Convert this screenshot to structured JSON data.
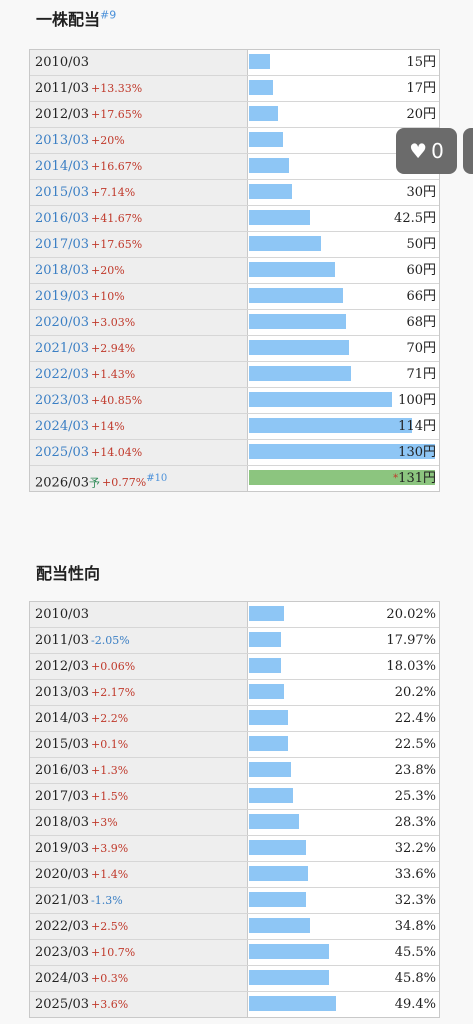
{
  "dividend": {
    "title": "一株配当",
    "note": "#9",
    "rows": [
      {
        "year": "2010/03",
        "chg": "",
        "dir": "",
        "blue": false,
        "value": "15円",
        "ratio": 0.115
      },
      {
        "year": "2011/03",
        "chg": "+13.33%",
        "dir": "up",
        "blue": false,
        "value": "17円",
        "ratio": 0.131
      },
      {
        "year": "2012/03",
        "chg": "+17.65%",
        "dir": "up",
        "blue": false,
        "value": "20円",
        "ratio": 0.154
      },
      {
        "year": "2013/03",
        "chg": "+20%",
        "dir": "up",
        "blue": true,
        "value": "24円",
        "ratio": 0.185
      },
      {
        "year": "2014/03",
        "chg": "+16.67%",
        "dir": "up",
        "blue": true,
        "value": "28円",
        "ratio": 0.215
      },
      {
        "year": "2015/03",
        "chg": "+7.14%",
        "dir": "up",
        "blue": true,
        "value": "30円",
        "ratio": 0.231
      },
      {
        "year": "2016/03",
        "chg": "+41.67%",
        "dir": "up",
        "blue": true,
        "value": "42.5円",
        "ratio": 0.327
      },
      {
        "year": "2017/03",
        "chg": "+17.65%",
        "dir": "up",
        "blue": true,
        "value": "50円",
        "ratio": 0.385
      },
      {
        "year": "2018/03",
        "chg": "+20%",
        "dir": "up",
        "blue": true,
        "value": "60円",
        "ratio": 0.462
      },
      {
        "year": "2019/03",
        "chg": "+10%",
        "dir": "up",
        "blue": true,
        "value": "66円",
        "ratio": 0.508
      },
      {
        "year": "2020/03",
        "chg": "+3.03%",
        "dir": "up",
        "blue": true,
        "value": "68円",
        "ratio": 0.523
      },
      {
        "year": "2021/03",
        "chg": "+2.94%",
        "dir": "up",
        "blue": true,
        "value": "70円",
        "ratio": 0.538
      },
      {
        "year": "2022/03",
        "chg": "+1.43%",
        "dir": "up",
        "blue": true,
        "value": "71円",
        "ratio": 0.546
      },
      {
        "year": "2023/03",
        "chg": "+40.85%",
        "dir": "up",
        "blue": true,
        "value": "100円",
        "ratio": 0.769
      },
      {
        "year": "2024/03",
        "chg": "+14%",
        "dir": "up",
        "blue": true,
        "value": "114円",
        "ratio": 0.877
      },
      {
        "year": "2025/03",
        "chg": "+14.04%",
        "dir": "up",
        "blue": true,
        "value": "130円",
        "ratio": 1.0
      }
    ],
    "forecast": {
      "year": "2026/03",
      "yo": "予",
      "chg": "+0.77%",
      "note": "#10",
      "star": "*",
      "value": "131円",
      "ratio": 1.0
    }
  },
  "payout": {
    "title": "配当性向",
    "rows": [
      {
        "year": "2010/03",
        "chg": "",
        "dir": "",
        "value": "20.02%",
        "ratio": 0.189
      },
      {
        "year": "2011/03",
        "chg": "-2.05%",
        "dir": "down",
        "value": "17.97%",
        "ratio": 0.17
      },
      {
        "year": "2012/03",
        "chg": "+0.06%",
        "dir": "up",
        "value": "18.03%",
        "ratio": 0.17
      },
      {
        "year": "2013/03",
        "chg": "+2.17%",
        "dir": "up",
        "value": "20.2%",
        "ratio": 0.19
      },
      {
        "year": "2014/03",
        "chg": "+2.2%",
        "dir": "up",
        "value": "22.4%",
        "ratio": 0.211
      },
      {
        "year": "2015/03",
        "chg": "+0.1%",
        "dir": "up",
        "value": "22.5%",
        "ratio": 0.212
      },
      {
        "year": "2016/03",
        "chg": "+1.3%",
        "dir": "up",
        "value": "23.8%",
        "ratio": 0.225
      },
      {
        "year": "2017/03",
        "chg": "+1.5%",
        "dir": "up",
        "value": "25.3%",
        "ratio": 0.239
      },
      {
        "year": "2018/03",
        "chg": "+3%",
        "dir": "up",
        "value": "28.3%",
        "ratio": 0.267
      },
      {
        "year": "2019/03",
        "chg": "+3.9%",
        "dir": "up",
        "value": "32.2%",
        "ratio": 0.304
      },
      {
        "year": "2020/03",
        "chg": "+1.4%",
        "dir": "up",
        "value": "33.6%",
        "ratio": 0.317
      },
      {
        "year": "2021/03",
        "chg": "-1.3%",
        "dir": "down",
        "value": "32.3%",
        "ratio": 0.305
      },
      {
        "year": "2022/03",
        "chg": "+2.5%",
        "dir": "up",
        "value": "34.8%",
        "ratio": 0.328
      },
      {
        "year": "2023/03",
        "chg": "+10.7%",
        "dir": "up",
        "value": "45.5%",
        "ratio": 0.429
      },
      {
        "year": "2024/03",
        "chg": "+0.3%",
        "dir": "up",
        "value": "45.8%",
        "ratio": 0.432
      },
      {
        "year": "2025/03",
        "chg": "+3.6%",
        "dir": "up",
        "value": "49.4%",
        "ratio": 0.466
      }
    ]
  },
  "like": {
    "icon": "heart-icon",
    "count": "0"
  }
}
